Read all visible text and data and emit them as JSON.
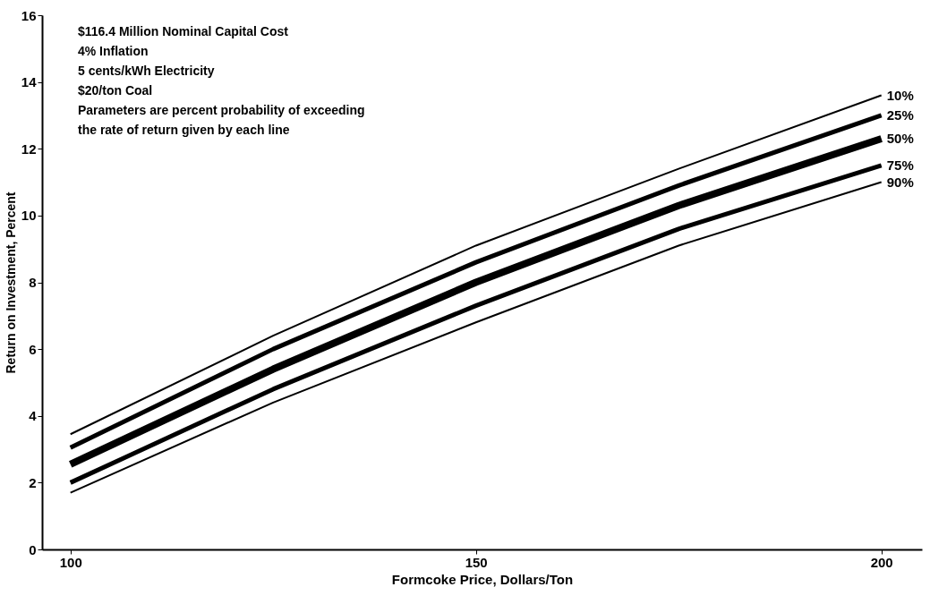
{
  "chart_data": {
    "type": "line",
    "xlabel": "Formcoke Price, Dollars/Ton",
    "ylabel": "Return on Investment, Percent",
    "x": [
      100,
      125,
      150,
      175,
      200
    ],
    "series": [
      {
        "name": "10%",
        "color": "#000000",
        "values": [
          3.45,
          6.4,
          9.1,
          11.4,
          13.6
        ]
      },
      {
        "name": "25%",
        "color": "#000000",
        "values": [
          3.05,
          6.0,
          8.6,
          10.9,
          13.0
        ]
      },
      {
        "name": "50%",
        "color": "#000000",
        "values": [
          2.55,
          5.4,
          8.0,
          10.3,
          12.3
        ]
      },
      {
        "name": "75%",
        "color": "#000000",
        "values": [
          2.0,
          4.8,
          7.3,
          9.6,
          11.5
        ]
      },
      {
        "name": "90%",
        "color": "#000000",
        "values": [
          1.7,
          4.4,
          6.8,
          9.1,
          11.0
        ]
      }
    ],
    "xlim": [
      96.5,
      205
    ],
    "xticks": [
      100,
      150,
      200
    ],
    "ylim": [
      0,
      16
    ],
    "yticks": [
      0,
      2,
      4,
      6,
      8,
      10,
      12,
      14,
      16
    ],
    "grid": false,
    "legend": false,
    "marker": "none",
    "line_style": "solid",
    "annotations": [
      "$116.4 Million Nominal Capital Cost",
      "4% Inflation",
      "5 cents/kWh Electricity",
      "$20/ton Coal",
      "Parameters are percent probability of exceeding",
      "   the rate of return given by each line"
    ]
  }
}
